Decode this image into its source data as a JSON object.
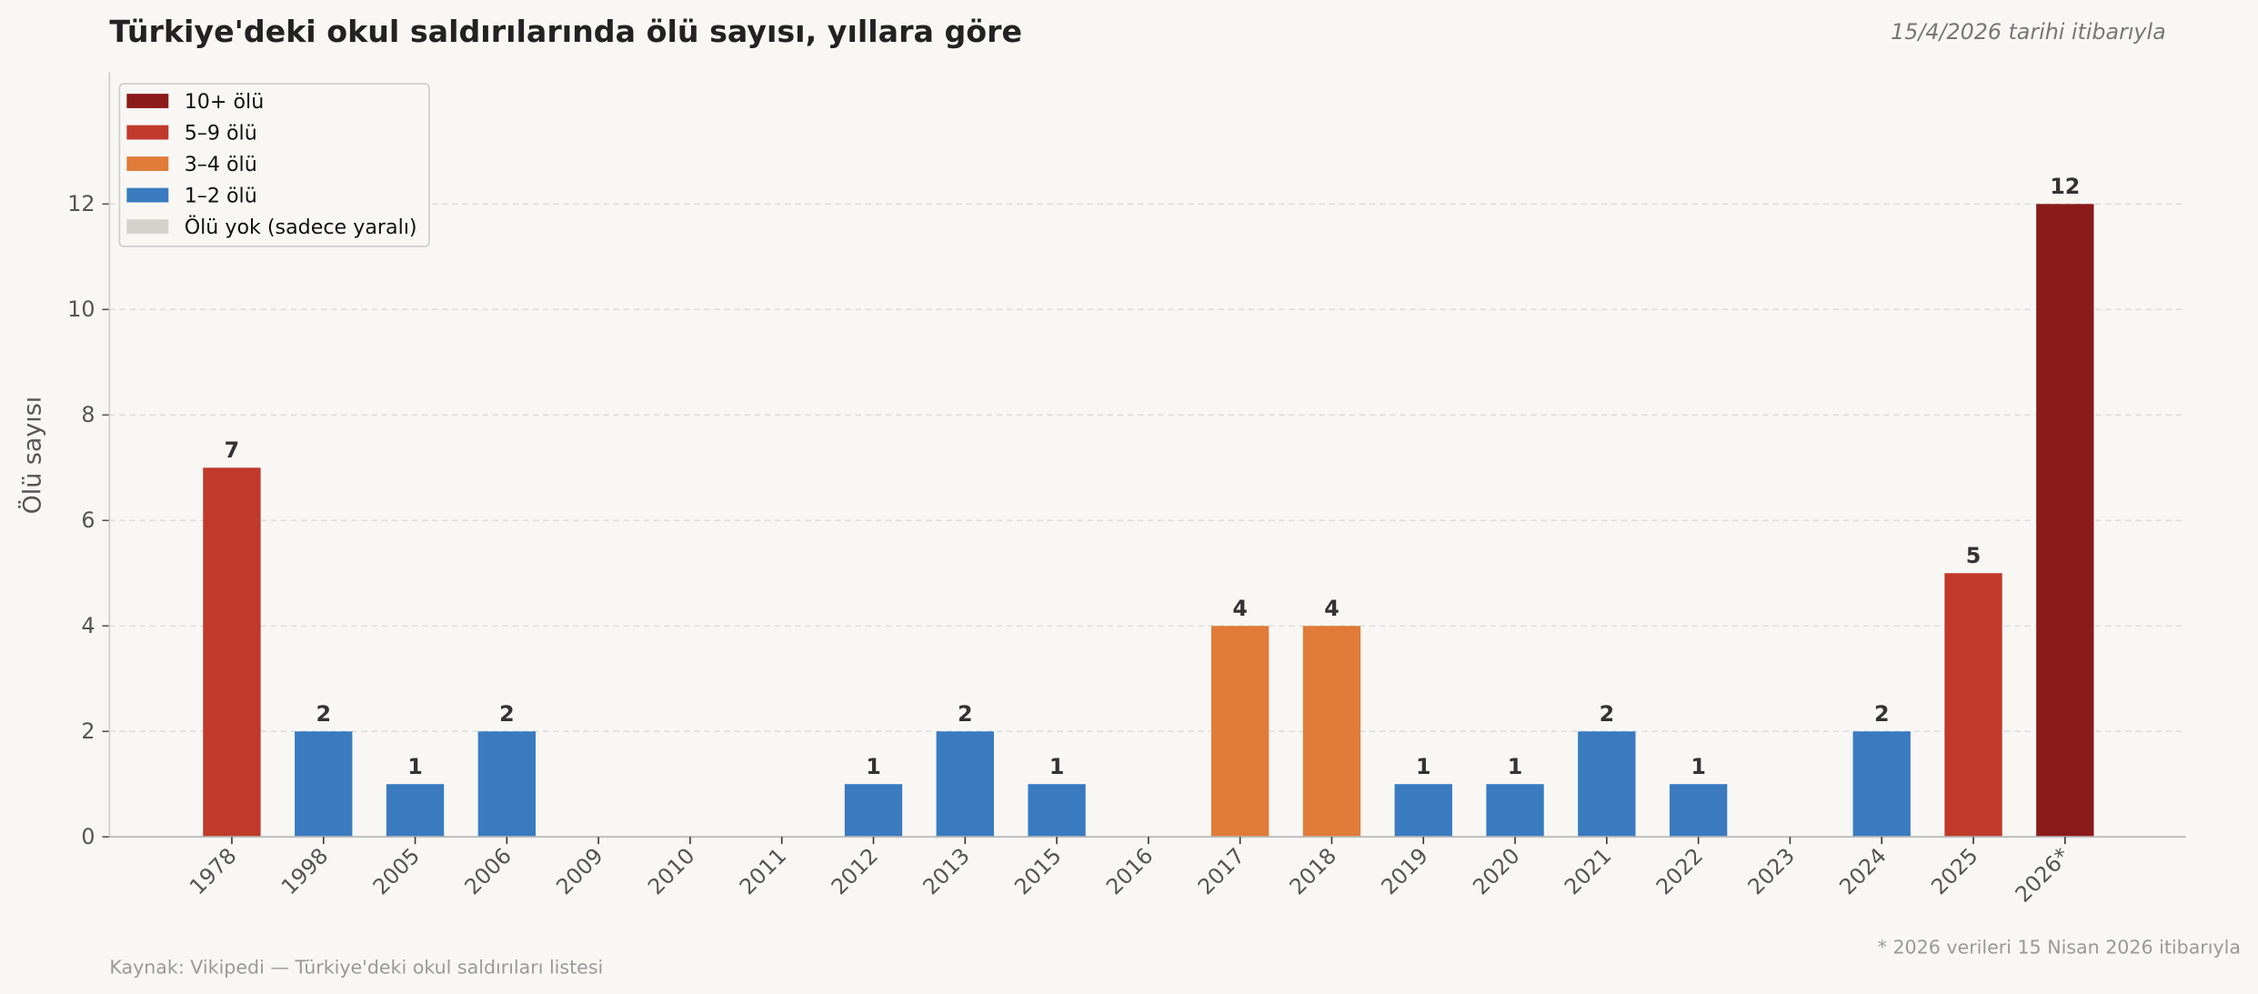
{
  "chart_data": {
    "type": "bar",
    "title": "Türkiye'deki okul saldırılarında ölü sayısı, yıllara göre",
    "subtitle": "15/4/2026 tarihi itibarıyla",
    "xlabel": "",
    "ylabel": "Ölü sayısı",
    "ylim": [
      0,
      14.5
    ],
    "yticks": [
      0,
      2,
      4,
      6,
      8,
      10,
      12
    ],
    "grid": "horizontal dashed",
    "legend_placement": "top-left",
    "categories": [
      "1978",
      "1998",
      "2005",
      "2006",
      "2009",
      "2010",
      "2011",
      "2012",
      "2013",
      "2015",
      "2016",
      "2017",
      "2018",
      "2019",
      "2020",
      "2021",
      "2022",
      "2023",
      "2024",
      "2025",
      "2026*"
    ],
    "values": [
      7,
      2,
      1,
      2,
      0,
      0,
      0,
      1,
      2,
      1,
      0,
      4,
      4,
      1,
      1,
      2,
      1,
      0,
      2,
      5,
      12
    ],
    "legend": [
      {
        "label": "10+ ölü",
        "color": "#8b1a1a"
      },
      {
        "label": "5–9 ölü",
        "color": "#c0392b"
      },
      {
        "label": "3–4 ölü",
        "color": "#e07b39"
      },
      {
        "label": "1–2 ölü",
        "color": "#3a7bbf"
      },
      {
        "label": "Ölü yok (sadece yaralı)",
        "color": "#d3d3cc"
      }
    ],
    "source": "Kaynak: Vikipedi — Türkiye'deki okul saldırıları listesi",
    "footnote": "* 2026 verileri 15 Nisan 2026 itibarıyla"
  }
}
